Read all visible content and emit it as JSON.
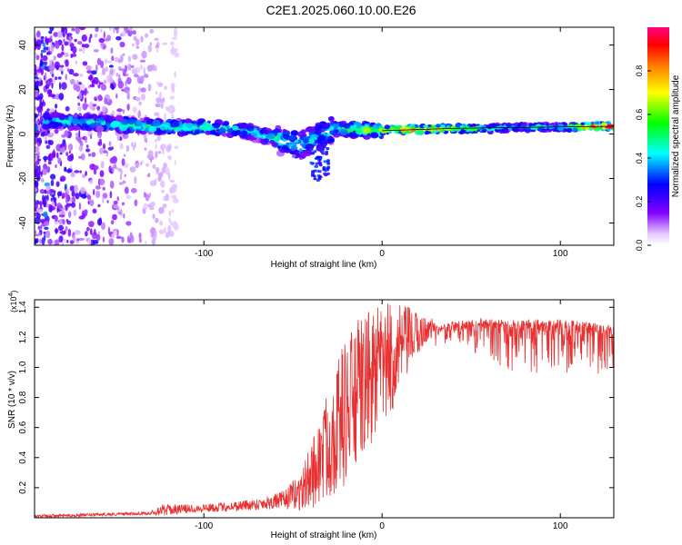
{
  "title": "C2E1.2025.060.10.00.E26",
  "chart_data": [
    {
      "type": "heatmap",
      "name": "spectrogram",
      "xlabel": "Height of straight line (km)",
      "ylabel": "Frequency (Hz)",
      "xlim": [
        -195,
        130
      ],
      "ylim": [
        -50,
        48
      ],
      "xticks": [
        -100,
        0,
        100
      ],
      "yticks": [
        -40,
        -20,
        0,
        20,
        40
      ],
      "grid": false,
      "colorbar": {
        "label": "Normalized spectral amplitude",
        "range": [
          0,
          1
        ],
        "ticks": [
          "0.0",
          "0.2",
          "0.4",
          "0.6",
          "0.8"
        ],
        "colors": [
          "#ffffff",
          "#7f00ff",
          "#0000ff",
          "#00ffff",
          "#00ff00",
          "#ffff00",
          "#ff0000",
          "#ff0080"
        ]
      },
      "trace": {
        "x": [
          -190,
          -175,
          -160,
          -145,
          -130,
          -115,
          -100,
          -90,
          -80,
          -70,
          -60,
          -52,
          -45,
          -40,
          -35,
          -30,
          -25,
          -20,
          -10,
          0,
          10,
          20,
          40,
          60,
          80,
          100,
          120,
          130
        ],
        "freq": [
          6,
          5.5,
          5,
          4,
          3.5,
          3,
          3,
          2.5,
          2,
          0,
          -2,
          -4,
          -5,
          -3,
          -1,
          1,
          3,
          2,
          2,
          1.5,
          2,
          2,
          2.5,
          2.5,
          3,
          3,
          3.5,
          3.5
        ],
        "amplitude": [
          0.35,
          0.4,
          0.4,
          0.45,
          0.45,
          0.45,
          0.45,
          0.4,
          0.4,
          0.4,
          0.45,
          0.4,
          0.4,
          0.35,
          0.35,
          0.4,
          0.45,
          0.5,
          0.55,
          0.6,
          0.75,
          0.9,
          0.6,
          0.45,
          0.4,
          0.4,
          0.9,
          0.9
        ]
      }
    },
    {
      "type": "line",
      "name": "snr",
      "xlabel": "Height of straight line (km)",
      "ylabel": "SNR (10 * v/v)",
      "y_multiplier": "(x10",
      "y_multiplier_exp": "4",
      "y_multiplier_close": ")",
      "xlim": [
        -195,
        130
      ],
      "ylim": [
        0,
        1.45
      ],
      "xticks": [
        -100,
        0,
        100
      ],
      "yticks": [
        0.2,
        0.4,
        0.6,
        0.8,
        1.0,
        1.2,
        1.4
      ],
      "ytick_labels": [
        "0.2",
        "0.4",
        "0.6",
        "0.8",
        "1.0",
        "1.2",
        "1.4"
      ],
      "color": "#e83030",
      "grid": false,
      "envelope": {
        "x": [
          -195,
          -160,
          -130,
          -125,
          -110,
          -90,
          -70,
          -55,
          -45,
          -40,
          -35,
          -30,
          -25,
          -20,
          -15,
          -10,
          -5,
          0,
          5,
          10,
          15,
          20,
          25,
          30,
          40,
          50,
          60,
          70,
          80,
          90,
          100,
          110,
          120,
          130
        ],
        "base": [
          0.01,
          0.02,
          0.03,
          0.05,
          0.06,
          0.07,
          0.09,
          0.12,
          0.18,
          0.28,
          0.38,
          0.5,
          0.62,
          0.72,
          0.8,
          0.88,
          0.95,
          1.0,
          1.05,
          1.12,
          1.18,
          1.22,
          1.25,
          1.27,
          1.29,
          1.3,
          1.31,
          1.3,
          1.3,
          1.3,
          1.3,
          1.29,
          1.28,
          1.27
        ],
        "spread": [
          0.01,
          0.01,
          0.01,
          0.04,
          0.03,
          0.03,
          0.04,
          0.06,
          0.14,
          0.22,
          0.3,
          0.38,
          0.45,
          0.5,
          0.5,
          0.48,
          0.45,
          0.42,
          0.38,
          0.3,
          0.22,
          0.15,
          0.08,
          0.06,
          0.06,
          0.08,
          0.12,
          0.15,
          0.15,
          0.15,
          0.15,
          0.15,
          0.15,
          0.15
        ]
      }
    }
  ]
}
